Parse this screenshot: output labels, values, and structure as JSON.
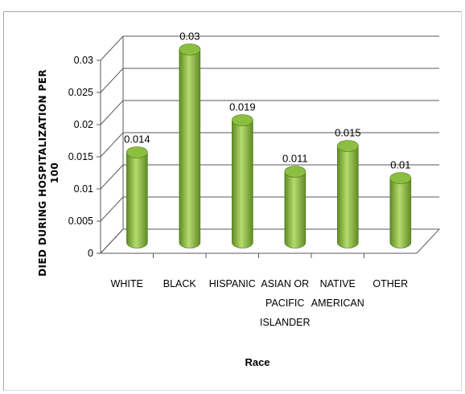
{
  "chart_data": {
    "type": "bar",
    "style": "3d-cylinder",
    "categories": [
      [
        "WHITE"
      ],
      [
        "BLACK"
      ],
      [
        "HISPANIC"
      ],
      [
        "ASIAN OR",
        "PACIFIC",
        "ISLANDER"
      ],
      [
        "NATIVE",
        "AMERICAN"
      ],
      [
        "OTHER"
      ]
    ],
    "values": [
      0.014,
      0.03,
      0.019,
      0.011,
      0.015,
      0.01
    ],
    "data_labels": [
      "0.014",
      "0.03",
      "0.019",
      "0.011",
      "0.015",
      "0.01"
    ],
    "ylabel_lines": [
      "DIED DURING HOSPITALIZATION  PER",
      "100"
    ],
    "xlabel": "Race",
    "ylim": [
      0,
      0.03
    ],
    "yticks": [
      "0",
      "0.005",
      "0.01",
      "0.015",
      "0.02",
      "0.025",
      "0.03"
    ],
    "grid": true,
    "bar_color": "#8cbf3f",
    "bar_color_dark": "#5f8a24",
    "bar_color_light": "#b6dc6e"
  }
}
